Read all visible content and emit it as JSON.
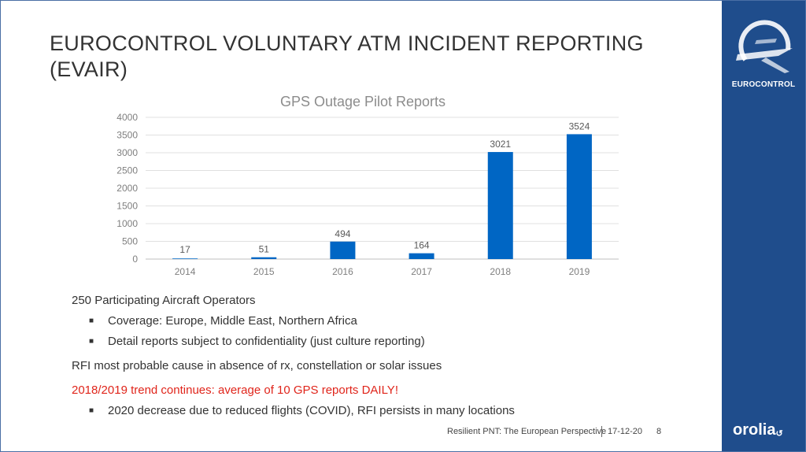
{
  "slide": {
    "title": "EUROCONTROL VOLUNTARY ATM INCIDENT REPORTING (EVAIR)",
    "brand": {
      "logo_text": "EUROCONTROL",
      "partner": "orolia",
      "sidebar_color": "#1f4d8c"
    },
    "paragraphs": {
      "operators": "250 Participating Aircraft Operators",
      "bullets_a": [
        "Coverage: Europe, Middle East, Northern Africa",
        "Detail reports subject to confidentiality (just culture reporting)"
      ],
      "rfi": "RFI most probable cause in absence of rx, constellation or solar issues",
      "trend": "2018/2019 trend continues: average of 10 GPS reports DAILY!",
      "bullets_b": [
        "2020 decrease due to reduced flights (COVID), RFI persists in many locations"
      ]
    },
    "footer": {
      "presentation": "Resilient PNT: The European Perspective",
      "date": "17-12-20",
      "page_number": "8"
    },
    "colors": {
      "bar": "#0066c4",
      "highlight": "#e0251b"
    }
  },
  "chart_data": {
    "type": "bar",
    "title": "GPS Outage Pilot Reports",
    "categories": [
      "2014",
      "2015",
      "2016",
      "2017",
      "2018",
      "2019"
    ],
    "values": [
      17,
      51,
      494,
      164,
      3021,
      3524
    ],
    "ylim": [
      0,
      4000
    ],
    "yticks": [
      0,
      500,
      1000,
      1500,
      2000,
      2500,
      3000,
      3500,
      4000
    ],
    "grid": true,
    "legend": "none"
  }
}
